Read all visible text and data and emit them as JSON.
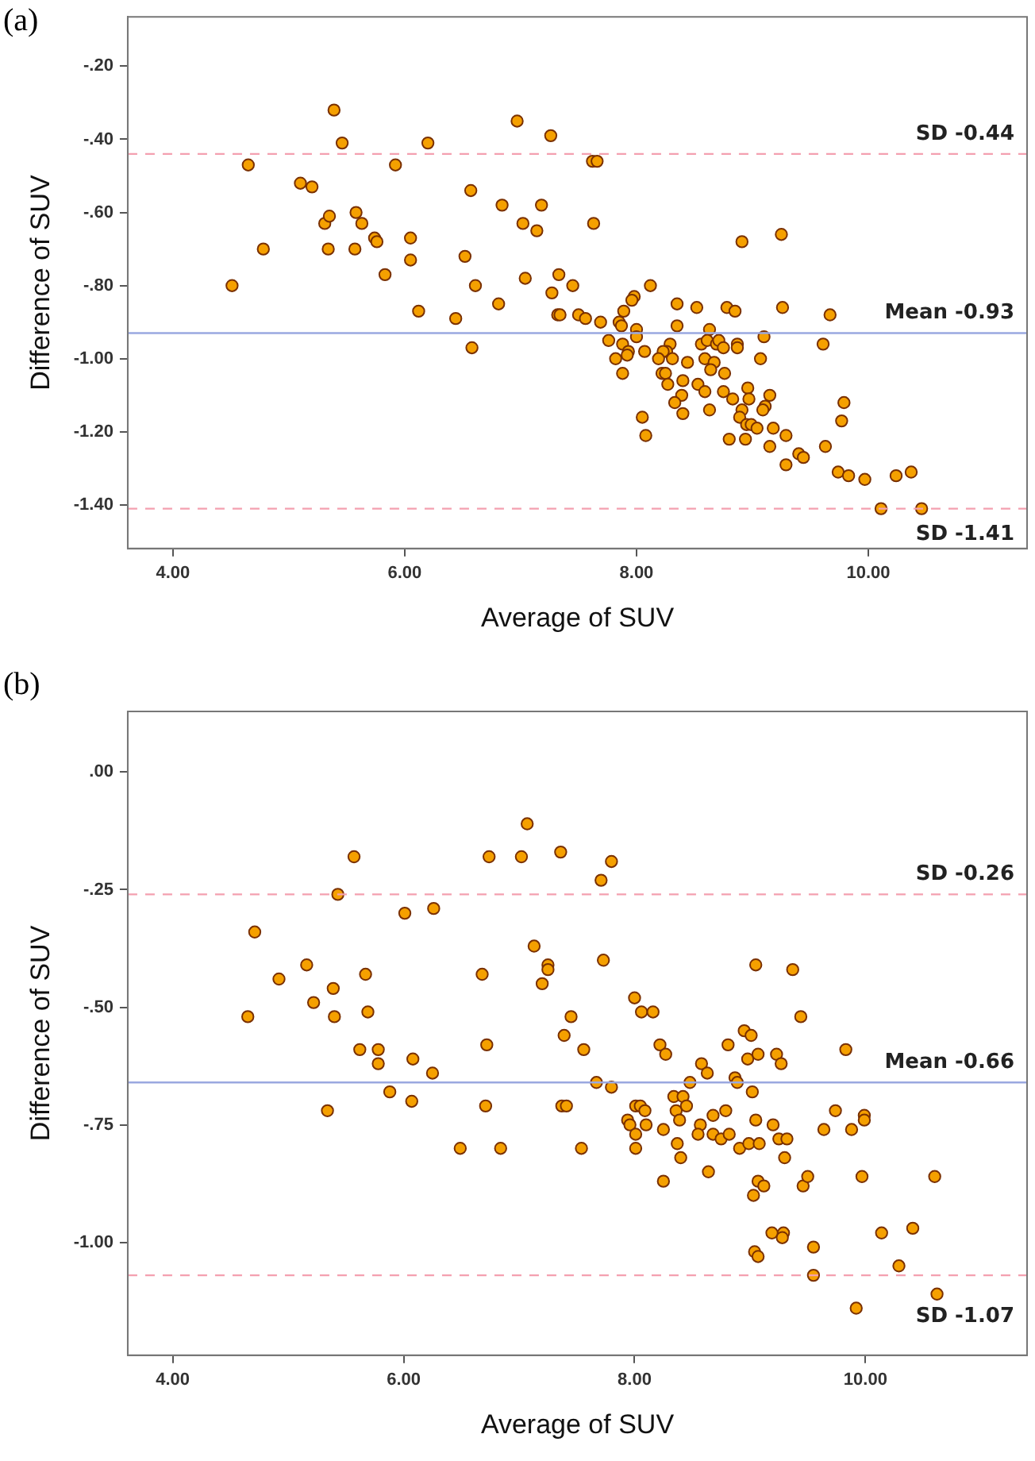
{
  "chart_data": [
    {
      "type": "scatter",
      "annotations": [
        "(a)"
      ],
      "xlabel": "Average of SUV",
      "ylabel": "Difference of SUV",
      "marker": "circle",
      "grid": false,
      "legend": false,
      "xlim": [
        3.61,
        11.37
      ],
      "ylim": [
        -1.519,
        -0.065
      ],
      "xticks": [
        {
          "value": 4,
          "label": "4.00"
        },
        {
          "value": 6,
          "label": "6.00"
        },
        {
          "value": 8,
          "label": "8.00"
        },
        {
          "value": 10,
          "label": "10.00"
        }
      ],
      "yticks": [
        {
          "value": -0.2,
          "label": "-.20"
        },
        {
          "value": -0.4,
          "label": "-.40"
        },
        {
          "value": -0.6,
          "label": "-.60"
        },
        {
          "value": -0.8,
          "label": "-.80"
        },
        {
          "value": -1.0,
          "label": "-1.00"
        },
        {
          "value": -1.2,
          "label": "-1.20"
        },
        {
          "value": -1.4,
          "label": "-1.40"
        }
      ],
      "ref_lines": [
        {
          "axis": "y",
          "value": -0.44,
          "label": "SD -0.44",
          "color": "#f4a0b0",
          "line_style": "dashed"
        },
        {
          "axis": "y",
          "value": -0.93,
          "label": "Mean -0.93",
          "color": "#9aa8e0",
          "line_style": "solid"
        },
        {
          "axis": "y",
          "value": -1.41,
          "label": "SD -1.41",
          "color": "#f4a0b0",
          "line_style": "dashed"
        }
      ],
      "series": [
        {
          "color": "#f5a000",
          "x": [
            4.51,
            4.65,
            4.78,
            5.1,
            5.2,
            5.39,
            5.46,
            5.31,
            5.35,
            5.34,
            5.58,
            5.63,
            5.57,
            5.74,
            5.76,
            5.83,
            5.92,
            6.05,
            6.05,
            6.12,
            6.2,
            6.44,
            6.52,
            6.57,
            6.61,
            6.58,
            6.81,
            6.84,
            6.97,
            7.26,
            7.62,
            7.66,
            7.18,
            7.02,
            7.14,
            7.63,
            7.04,
            7.33,
            7.27,
            7.45,
            8.12,
            7.32,
            7.34,
            7.5,
            7.56,
            7.69,
            7.85,
            7.98,
            7.96,
            7.89,
            7.76,
            7.88,
            8.0,
            8.0,
            7.87,
            7.93,
            7.92,
            7.82,
            7.88,
            8.07,
            8.05,
            8.08,
            8.35,
            8.35,
            8.52,
            8.78,
            8.85,
            8.91,
            9.25,
            9.26,
            9.67,
            9.61,
            8.29,
            8.26,
            8.23,
            8.19,
            8.31,
            8.44,
            8.22,
            8.25,
            8.27,
            8.4,
            8.39,
            8.33,
            8.4,
            8.53,
            8.59,
            8.63,
            8.56,
            8.61,
            8.69,
            8.71,
            8.75,
            8.87,
            8.87,
            9.1,
            8.59,
            8.67,
            8.64,
            8.76,
            9.07,
            8.75,
            8.83,
            8.96,
            8.97,
            8.91,
            8.89,
            9.15,
            9.11,
            9.09,
            8.63,
            8.95,
            8.99,
            9.04,
            9.18,
            9.29,
            8.8,
            8.94,
            9.15,
            9.29,
            9.4,
            9.44,
            9.63,
            9.79,
            9.77,
            9.74,
            9.83,
            9.97,
            10.24,
            10.37,
            10.11,
            10.46
          ],
          "values": [
            -0.8,
            -0.47,
            -0.7,
            -0.52,
            -0.53,
            -0.32,
            -0.41,
            -0.63,
            -0.61,
            -0.7,
            -0.6,
            -0.63,
            -0.7,
            -0.67,
            -0.68,
            -0.77,
            -0.47,
            -0.67,
            -0.73,
            -0.87,
            -0.41,
            -0.89,
            -0.72,
            -0.54,
            -0.8,
            -0.97,
            -0.85,
            -0.58,
            -0.35,
            -0.39,
            -0.46,
            -0.46,
            -0.58,
            -0.63,
            -0.65,
            -0.63,
            -0.78,
            -0.77,
            -0.82,
            -0.8,
            -0.8,
            -0.88,
            -0.88,
            -0.88,
            -0.89,
            -0.9,
            -0.9,
            -0.83,
            -0.84,
            -0.87,
            -0.95,
            -0.96,
            -0.92,
            -0.94,
            -0.91,
            -0.98,
            -0.99,
            -1.0,
            -1.04,
            -0.98,
            -1.16,
            -1.21,
            -0.85,
            -0.91,
            -0.86,
            -0.86,
            -0.87,
            -0.68,
            -0.66,
            -0.86,
            -0.88,
            -0.96,
            -0.96,
            -0.98,
            -0.98,
            -1.0,
            -1.0,
            -1.01,
            -1.04,
            -1.04,
            -1.07,
            -1.06,
            -1.1,
            -1.12,
            -1.15,
            -1.07,
            -1.09,
            -0.92,
            -0.96,
            -0.95,
            -0.96,
            -0.95,
            -0.97,
            -0.96,
            -0.97,
            -0.94,
            -1.0,
            -1.01,
            -1.03,
            -1.04,
            -1.0,
            -1.09,
            -1.11,
            -1.08,
            -1.11,
            -1.14,
            -1.16,
            -1.1,
            -1.13,
            -1.14,
            -1.14,
            -1.18,
            -1.18,
            -1.19,
            -1.19,
            -1.21,
            -1.22,
            -1.22,
            -1.24,
            -1.29,
            -1.26,
            -1.27,
            -1.24,
            -1.12,
            -1.17,
            -1.31,
            -1.32,
            -1.33,
            -1.32,
            -1.31,
            -1.41,
            -1.41
          ]
        }
      ]
    },
    {
      "type": "scatter",
      "annotations": [
        "(b)"
      ],
      "xlabel": "Average of SUV",
      "ylabel": "Difference of SUV",
      "marker": "circle",
      "grid": false,
      "legend": false,
      "xlim": [
        3.61,
        11.4
      ],
      "ylim": [
        -1.24,
        0.129
      ],
      "xticks": [
        {
          "value": 4,
          "label": "4.00"
        },
        {
          "value": 6,
          "label": "6.00"
        },
        {
          "value": 8,
          "label": "8.00"
        },
        {
          "value": 10,
          "label": "10.00"
        }
      ],
      "yticks": [
        {
          "value": 0,
          "label": ".00"
        },
        {
          "value": -0.25,
          "label": "-.25"
        },
        {
          "value": -0.5,
          "label": "-.50"
        },
        {
          "value": -0.75,
          "label": "-.75"
        },
        {
          "value": -1.0,
          "label": "-1.00"
        }
      ],
      "ref_lines": [
        {
          "axis": "y",
          "value": -0.26,
          "label": "SD -0.26",
          "color": "#f4a0b0",
          "line_style": "dashed"
        },
        {
          "axis": "y",
          "value": -0.66,
          "label": "Mean -0.66",
          "color": "#9aa8e0",
          "line_style": "solid"
        },
        {
          "axis": "y",
          "value": -1.07,
          "label": "SD -1.07",
          "color": "#f4a0b0",
          "line_style": "dashed"
        }
      ],
      "series": [
        {
          "color": "#f5a000",
          "x": [
            4.65,
            4.71,
            4.92,
            5.16,
            5.22,
            5.34,
            5.39,
            5.4,
            5.43,
            5.57,
            5.62,
            5.67,
            5.69,
            5.78,
            5.78,
            5.88,
            6.01,
            6.08,
            6.07,
            6.25,
            6.26,
            6.49,
            6.68,
            6.72,
            6.74,
            6.71,
            6.84,
            7.07,
            7.02,
            7.36,
            7.71,
            7.8,
            7.13,
            7.25,
            7.25,
            7.2,
            7.73,
            7.45,
            7.39,
            7.56,
            8.0,
            8.06,
            8.16,
            7.67,
            7.8,
            7.37,
            7.41,
            7.54,
            8.22,
            8.27,
            8.01,
            8.05,
            8.09,
            7.94,
            7.96,
            8.1,
            8.01,
            8.01,
            8.25,
            8.25,
            8.34,
            8.42,
            8.36,
            8.45,
            8.39,
            8.48,
            8.37,
            8.4,
            8.58,
            8.63,
            8.57,
            8.55,
            8.64,
            8.68,
            8.79,
            8.68,
            8.75,
            8.82,
            8.81,
            8.87,
            8.89,
            8.95,
            9.01,
            8.98,
            9.07,
            9.02,
            8.91,
            8.99,
            9.08,
            9.05,
            9.05,
            9.37,
            9.44,
            9.23,
            9.27,
            9.2,
            9.25,
            9.32,
            9.3,
            9.07,
            9.12,
            9.03,
            9.46,
            9.5,
            9.83,
            9.74,
            9.64,
            9.88,
            9.99,
            9.99,
            9.97,
            10.6,
            9.19,
            9.29,
            9.28,
            9.04,
            9.07,
            9.55,
            9.55,
            10.14,
            10.41,
            10.29,
            9.92,
            10.62
          ],
          "values": [
            -0.52,
            -0.34,
            -0.44,
            -0.41,
            -0.49,
            -0.72,
            -0.46,
            -0.52,
            -0.26,
            -0.18,
            -0.59,
            -0.43,
            -0.51,
            -0.59,
            -0.62,
            -0.68,
            -0.3,
            -0.61,
            -0.7,
            -0.64,
            -0.29,
            -0.8,
            -0.43,
            -0.58,
            -0.18,
            -0.71,
            -0.8,
            -0.11,
            -0.18,
            -0.17,
            -0.23,
            -0.19,
            -0.37,
            -0.41,
            -0.42,
            -0.45,
            -0.4,
            -0.52,
            -0.56,
            -0.59,
            -0.48,
            -0.51,
            -0.51,
            -0.66,
            -0.67,
            -0.71,
            -0.71,
            -0.8,
            -0.58,
            -0.6,
            -0.71,
            -0.71,
            -0.72,
            -0.74,
            -0.75,
            -0.75,
            -0.77,
            -0.8,
            -0.76,
            -0.87,
            -0.69,
            -0.69,
            -0.72,
            -0.71,
            -0.74,
            -0.66,
            -0.79,
            -0.82,
            -0.62,
            -0.64,
            -0.75,
            -0.77,
            -0.85,
            -0.73,
            -0.72,
            -0.77,
            -0.78,
            -0.77,
            -0.58,
            -0.65,
            -0.66,
            -0.55,
            -0.56,
            -0.61,
            -0.6,
            -0.68,
            -0.8,
            -0.79,
            -0.79,
            -0.74,
            -0.41,
            -0.42,
            -0.52,
            -0.6,
            -0.62,
            -0.75,
            -0.78,
            -0.78,
            -0.82,
            -0.87,
            -0.88,
            -0.9,
            -0.88,
            -0.86,
            -0.59,
            -0.72,
            -0.76,
            -0.76,
            -0.73,
            -0.74,
            -0.86,
            -0.86,
            -0.98,
            -0.98,
            -0.99,
            -1.02,
            -1.03,
            -1.01,
            -1.07,
            -0.98,
            -0.97,
            -1.05,
            -1.14,
            -1.11
          ]
        }
      ]
    }
  ]
}
